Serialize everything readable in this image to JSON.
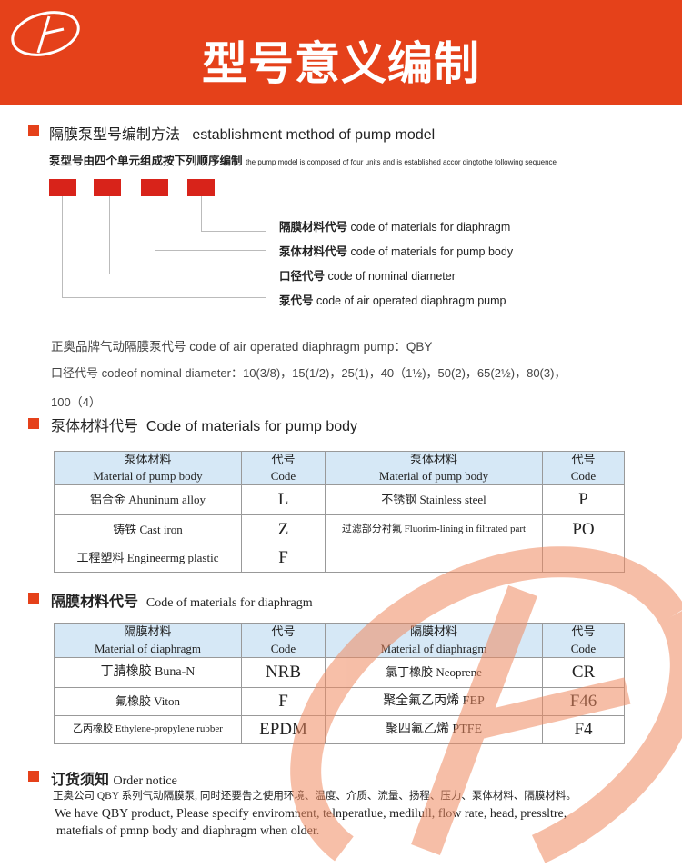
{
  "header": {
    "title": "型号意义编制",
    "brand_color": "#e5411a"
  },
  "section1": {
    "heading_cn": "隔膜泵型号编制方法",
    "heading_en": "establishment method of pump model",
    "sub_cn": "泵型号由四个单元组成按下列顺序编制",
    "sub_en": "the pump model is composed of four units and is established accor dingtothe following sequence",
    "labels": [
      {
        "cn": "隔膜材料代号",
        "en": "code of materials for diaphragm"
      },
      {
        "cn": "泵体材料代号",
        "en": "code of materials for pump body"
      },
      {
        "cn": "口径代号",
        "en": "code of nominal diameter"
      },
      {
        "cn": "泵代号",
        "en": "code of air operated diaphragm pump"
      }
    ],
    "line1": "正奥品牌气动隔膜泵代号 code of  air operated diaphragm pump：QBY",
    "line2": "口径代号 codeof nominal diameter：10(3/8)，15(1/2)，25(1)，40（1½)，50(2)，65(2½)，80(3)，",
    "line3": "100（4）"
  },
  "section2": {
    "heading_cn": "泵体材料代号",
    "heading_en": "Code of materials for pump body",
    "headers": [
      {
        "cn": "泵体材料",
        "en": "Material of pump body"
      },
      {
        "cn": "代号",
        "en": "Code"
      },
      {
        "cn": "泵体材料",
        "en": "Material of pump body"
      },
      {
        "cn": "代号",
        "en": "Code"
      }
    ],
    "rows": [
      [
        "铝合金 Ahuninum alloy",
        "L",
        "不锈钢 Stainless steel",
        "P"
      ],
      [
        "铸铁 Cast iron",
        "Z",
        "过滤部分衬氟 Fluorim-lining in filtrated part",
        "PO"
      ],
      [
        "工程塑料 Engineermg plastic",
        "F",
        "",
        ""
      ]
    ]
  },
  "section3": {
    "heading_cn": "隔膜材料代号",
    "heading_en": "Code of materials for diaphragm",
    "headers": [
      {
        "cn": "隔膜材料",
        "en": "Material of diaphragm"
      },
      {
        "cn": "代号",
        "en": "Code"
      },
      {
        "cn": "隔膜材料",
        "en": "Material of diaphragm"
      },
      {
        "cn": "代号",
        "en": "Code"
      }
    ],
    "rows": [
      [
        "丁腈橡胶 Buna-N",
        "NRB",
        "氯丁橡胶 Neoprene",
        "CR"
      ],
      [
        "氟橡胶 Viton",
        "F",
        "聚全氟乙丙烯 FEP",
        "F46"
      ],
      [
        "乙丙橡胶 Ethylene-propylene rubber",
        "EPDM",
        "聚四氟乙烯 PTFE",
        "F4"
      ]
    ]
  },
  "section4": {
    "heading_cn": "订货须知",
    "heading_en": "Order notice",
    "line_cn": "正奥公司 QBY 系列气动隔膜泵, 同时还要告之使用环境、温度、介质、流量、扬程、压力、泵体材料、隔膜材料。",
    "line_en1": "We  have QBY product,   Please specify enviromnent, telnperatlue, medilull, flow rate, head, pressltre,",
    "line_en2": "matefials of pmnp body and diaphragm when older."
  }
}
